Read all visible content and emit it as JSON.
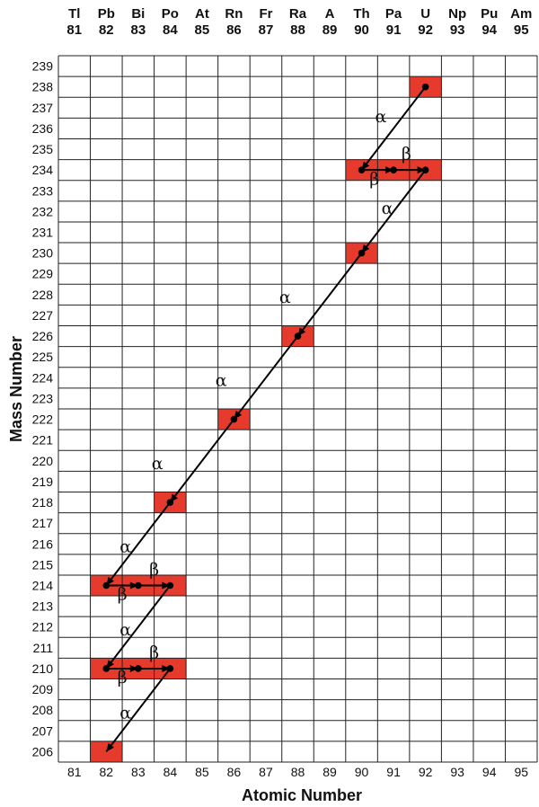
{
  "chart_data": {
    "type": "scatter",
    "xlabel": "Atomic Number",
    "ylabel": "Mass Number",
    "xlim": [
      81,
      95
    ],
    "ylim": [
      206,
      239
    ],
    "element_symbols": [
      "Tl",
      "Pb",
      "Bi",
      "Po",
      "At",
      "Rn",
      "Fr",
      "Ra",
      "A",
      "Th",
      "Pa",
      "U",
      "Np",
      "Pu",
      "Am"
    ],
    "atomic_numbers": [
      81,
      82,
      83,
      84,
      85,
      86,
      87,
      88,
      89,
      90,
      91,
      92,
      93,
      94,
      95
    ],
    "mass_numbers": [
      239,
      238,
      237,
      236,
      235,
      234,
      233,
      232,
      231,
      230,
      229,
      228,
      227,
      226,
      225,
      224,
      223,
      222,
      221,
      220,
      219,
      218,
      217,
      216,
      215,
      214,
      213,
      212,
      211,
      210,
      209,
      208,
      207,
      206
    ],
    "grid": true,
    "highlighted_cells": [
      {
        "z": 92,
        "a": 238
      },
      {
        "z": 90,
        "a": 234
      },
      {
        "z": 91,
        "a": 234
      },
      {
        "z": 92,
        "a": 234
      },
      {
        "z": 90,
        "a": 230
      },
      {
        "z": 88,
        "a": 226
      },
      {
        "z": 86,
        "a": 222
      },
      {
        "z": 84,
        "a": 218
      },
      {
        "z": 82,
        "a": 214
      },
      {
        "z": 83,
        "a": 214
      },
      {
        "z": 84,
        "a": 214
      },
      {
        "z": 82,
        "a": 210
      },
      {
        "z": 83,
        "a": 210
      },
      {
        "z": 84,
        "a": 210
      },
      {
        "z": 82,
        "a": 206
      }
    ],
    "decays": [
      {
        "type": "alpha",
        "label": "α",
        "from": [
          92,
          238
        ],
        "to": [
          90,
          234
        ]
      },
      {
        "type": "beta",
        "label": "β",
        "from": [
          90,
          234
        ],
        "to": [
          91,
          234
        ]
      },
      {
        "type": "beta",
        "label": "β",
        "from": [
          91,
          234
        ],
        "to": [
          92,
          234
        ]
      },
      {
        "type": "alpha",
        "label": "α",
        "from": [
          92,
          234
        ],
        "to": [
          90,
          230
        ]
      },
      {
        "type": "alpha",
        "label": "α",
        "from": [
          90,
          230
        ],
        "to": [
          88,
          226
        ]
      },
      {
        "type": "alpha",
        "label": "α",
        "from": [
          88,
          226
        ],
        "to": [
          86,
          222
        ]
      },
      {
        "type": "alpha",
        "label": "α",
        "from": [
          86,
          222
        ],
        "to": [
          84,
          218
        ]
      },
      {
        "type": "alpha",
        "label": "α",
        "from": [
          84,
          218
        ],
        "to": [
          82,
          214
        ]
      },
      {
        "type": "beta",
        "label": "β",
        "from": [
          82,
          214
        ],
        "to": [
          83,
          214
        ]
      },
      {
        "type": "beta",
        "label": "β",
        "from": [
          83,
          214
        ],
        "to": [
          84,
          214
        ]
      },
      {
        "type": "alpha",
        "label": "α",
        "from": [
          84,
          214
        ],
        "to": [
          82,
          210
        ]
      },
      {
        "type": "beta",
        "label": "β",
        "from": [
          82,
          210
        ],
        "to": [
          83,
          210
        ]
      },
      {
        "type": "beta",
        "label": "β",
        "from": [
          83,
          210
        ],
        "to": [
          84,
          210
        ]
      },
      {
        "type": "alpha",
        "label": "α",
        "from": [
          84,
          210
        ],
        "to": [
          82,
          206
        ]
      }
    ],
    "greek_labels": [
      {
        "text": "α",
        "x": 90.6,
        "y": 236.6
      },
      {
        "text": "β",
        "x": 91.4,
        "y": 234.8
      },
      {
        "text": "β",
        "x": 90.4,
        "y": 233.6
      },
      {
        "text": "α",
        "x": 90.8,
        "y": 232.2
      },
      {
        "text": "α",
        "x": 87.6,
        "y": 227.9
      },
      {
        "text": "α",
        "x": 85.6,
        "y": 223.9
      },
      {
        "text": "α",
        "x": 83.6,
        "y": 219.9
      },
      {
        "text": "α",
        "x": 82.6,
        "y": 215.9
      },
      {
        "text": "β",
        "x": 83.5,
        "y": 214.8
      },
      {
        "text": "β",
        "x": 82.5,
        "y": 213.6
      },
      {
        "text": "α",
        "x": 82.6,
        "y": 211.9
      },
      {
        "text": "β",
        "x": 83.5,
        "y": 210.8
      },
      {
        "text": "β",
        "x": 82.5,
        "y": 209.6
      },
      {
        "text": "α",
        "x": 82.6,
        "y": 207.9
      }
    ]
  }
}
